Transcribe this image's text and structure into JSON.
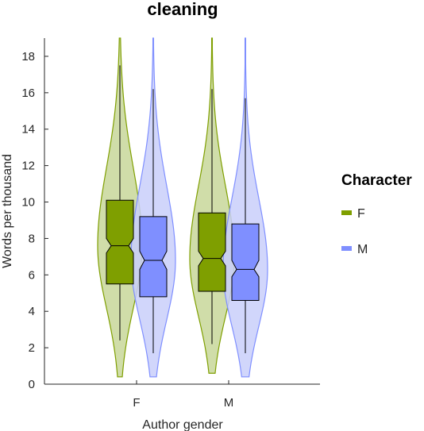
{
  "chart_data": {
    "type": "violin",
    "title": "cleaning",
    "xlabel": "Author gender",
    "ylabel": "Words per thousand",
    "categories": [
      "F",
      "M"
    ],
    "ylim": [
      0,
      19
    ],
    "yticks": [
      0,
      2,
      4,
      6,
      8,
      10,
      12,
      14,
      16,
      18
    ],
    "legend": {
      "title": "Character",
      "position": "right"
    },
    "series": [
      {
        "name": "F",
        "color": "#7f9f00",
        "fill": "#c8d79a",
        "groups": [
          {
            "category": "F",
            "whisker_low": 2.4,
            "q1": 5.5,
            "median": 7.6,
            "q3": 10.1,
            "whisker_high": 17.5,
            "notch_low": 7.2,
            "notch_high": 8.0,
            "violin_min": 0.4,
            "violin_max": 19
          },
          {
            "category": "M",
            "whisker_low": 2.2,
            "q1": 5.1,
            "median": 6.9,
            "q3": 9.4,
            "whisker_high": 16.2,
            "notch_low": 6.5,
            "notch_high": 7.3,
            "violin_min": 0.6,
            "violin_max": 19
          }
        ]
      },
      {
        "name": "M",
        "color": "#7f8fff",
        "fill": "#c9cffa",
        "groups": [
          {
            "category": "F",
            "whisker_low": 1.7,
            "q1": 4.8,
            "median": 6.8,
            "q3": 9.2,
            "whisker_high": 16.2,
            "notch_low": 6.3,
            "notch_high": 7.3,
            "violin_min": 0.4,
            "violin_max": 19
          },
          {
            "category": "M",
            "whisker_low": 1.7,
            "q1": 4.6,
            "median": 6.3,
            "q3": 8.8,
            "whisker_high": 15.7,
            "notch_low": 5.9,
            "notch_high": 6.8,
            "violin_min": 0.4,
            "violin_max": 19
          }
        ]
      }
    ]
  }
}
